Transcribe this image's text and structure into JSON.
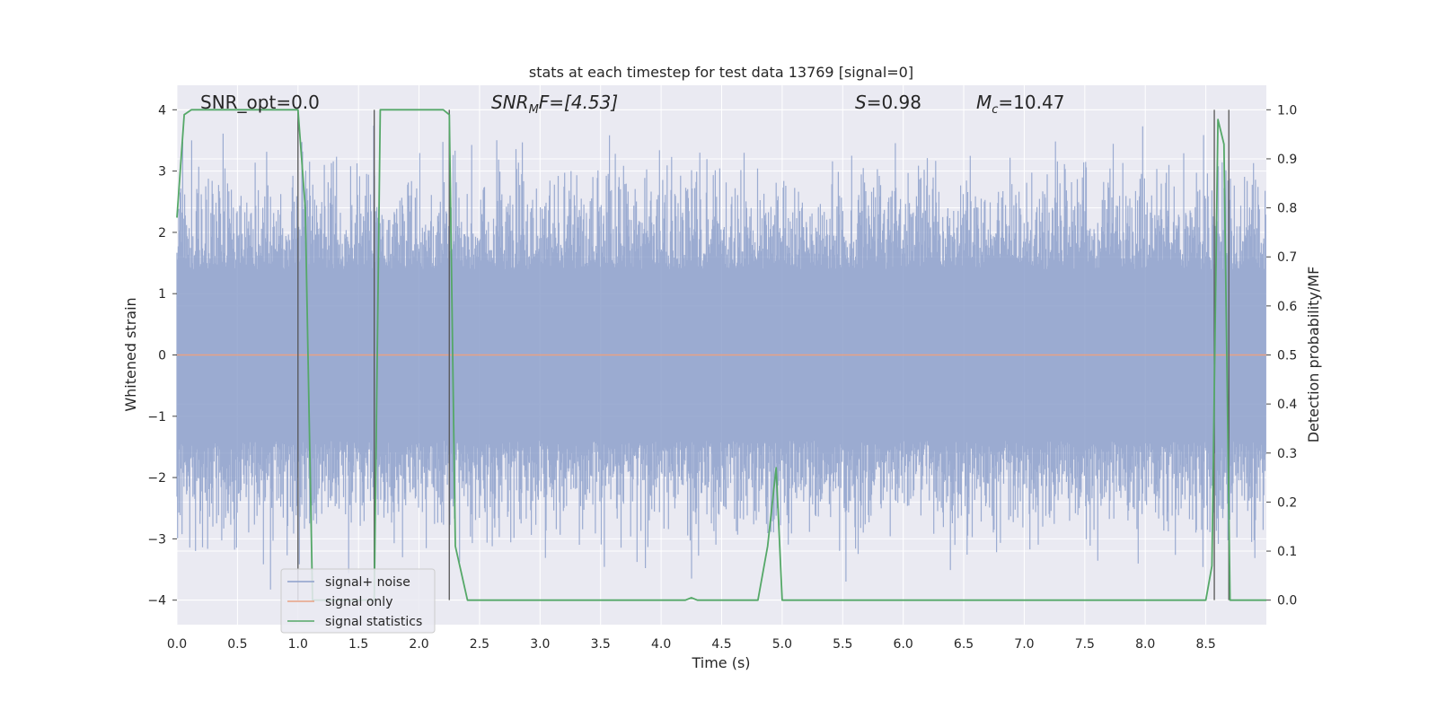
{
  "chart_data": {
    "type": "line",
    "title": "stats at each timestep for test data 13769 [signal=0]",
    "xlabel": "Time (s)",
    "ylabel": "Whitened strain",
    "y2label": "Detection probability/MF",
    "xlim": [
      0.0,
      9.0
    ],
    "ylim": [
      -4.4,
      4.4
    ],
    "y2lim": [
      -0.05,
      1.05
    ],
    "x_ticks": [
      "0.0",
      "0.5",
      "1.0",
      "1.5",
      "2.0",
      "2.5",
      "3.0",
      "3.5",
      "4.0",
      "4.5",
      "5.0",
      "5.5",
      "6.0",
      "6.5",
      "7.0",
      "7.5",
      "8.0",
      "8.5"
    ],
    "y_ticks": [
      "4",
      "3",
      "2",
      "1",
      "0",
      "−1",
      "−2",
      "−3",
      "−4"
    ],
    "y2_ticks": [
      "1.0",
      "0.9",
      "0.8",
      "0.7",
      "0.6",
      "0.5",
      "0.4",
      "0.3",
      "0.2",
      "0.1",
      "0.0"
    ],
    "grid": true,
    "legend_position": "lower-left",
    "annotations": {
      "snr_opt": "SNR_opt=0.0",
      "snr_mf_base": "SNR",
      "snr_mf_sub": "M",
      "snr_mf_rest": "F=[4.53]",
      "s_stat_sym": "S",
      "s_stat_val": "=0.98",
      "mc_sym": "M",
      "mc_sub": "c",
      "mc_val": "=10.47"
    },
    "series": [
      {
        "name": "signal+ noise",
        "color": "#8da0cb",
        "description_values": {
          "noise_band_sigma": 1.0,
          "peak_max": 4.0,
          "peak_min": -4.0
        }
      },
      {
        "name": "signal only",
        "color": "#e7a184",
        "x": [
          0.0,
          9.0
        ],
        "values": [
          0.0,
          0.0
        ]
      },
      {
        "name": "signal statistics",
        "color": "#55a868",
        "axis": "right",
        "x": [
          0.0,
          0.06,
          0.12,
          0.2,
          0.5,
          0.8,
          0.95,
          1.0,
          1.06,
          1.12,
          1.18,
          1.25,
          1.3,
          1.4,
          1.5,
          1.6,
          1.63,
          1.68,
          1.75,
          2.0,
          2.2,
          2.25,
          2.3,
          2.4,
          2.5,
          3.0,
          3.5,
          4.0,
          4.2,
          4.25,
          4.3,
          4.5,
          4.8,
          4.88,
          4.95,
          5.0,
          5.2,
          6.0,
          7.0,
          8.0,
          8.5,
          8.55,
          8.6,
          8.65,
          8.7,
          8.75,
          8.8,
          8.9,
          9.0
        ],
        "values": [
          0.78,
          0.99,
          1.0,
          1.0,
          1.0,
          1.0,
          1.0,
          1.0,
          0.8,
          0.0,
          0.0,
          0.0,
          0.0,
          0.0,
          0.0,
          0.0,
          0.0,
          1.0,
          1.0,
          1.0,
          1.0,
          0.99,
          0.11,
          0.0,
          0.0,
          0.0,
          0.0,
          0.0,
          0.0,
          0.005,
          0.0,
          0.0,
          0.0,
          0.11,
          0.27,
          0.0,
          0.0,
          0.0,
          0.0,
          0.0,
          0.0,
          0.07,
          0.98,
          0.93,
          0.0,
          0.0,
          0.0,
          0.0,
          0.0
        ]
      }
    ],
    "vlines": [
      1.0,
      1.63,
      2.25,
      8.57,
      8.69
    ]
  }
}
